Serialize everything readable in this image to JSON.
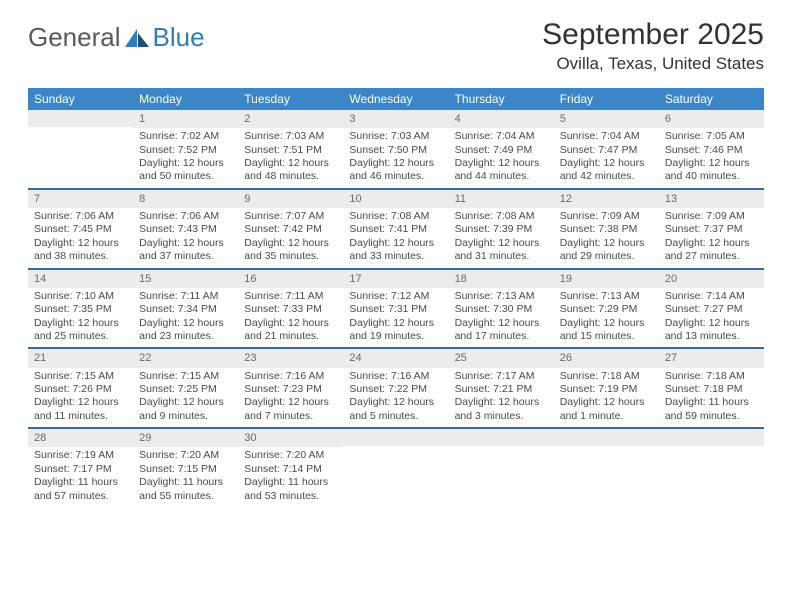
{
  "logo": {
    "general": "General",
    "blue": "Blue"
  },
  "title": "September 2025",
  "location": "Ovilla, Texas, United States",
  "header_color": "#3a86c8",
  "rule_color": "#3a6a9a",
  "daynum_bg": "#ececec",
  "day_names": [
    "Sunday",
    "Monday",
    "Tuesday",
    "Wednesday",
    "Thursday",
    "Friday",
    "Saturday"
  ],
  "weeks": [
    [
      {
        "n": "",
        "sr": "",
        "ss": "",
        "dl": ""
      },
      {
        "n": "1",
        "sr": "Sunrise: 7:02 AM",
        "ss": "Sunset: 7:52 PM",
        "dl": "Daylight: 12 hours and 50 minutes."
      },
      {
        "n": "2",
        "sr": "Sunrise: 7:03 AM",
        "ss": "Sunset: 7:51 PM",
        "dl": "Daylight: 12 hours and 48 minutes."
      },
      {
        "n": "3",
        "sr": "Sunrise: 7:03 AM",
        "ss": "Sunset: 7:50 PM",
        "dl": "Daylight: 12 hours and 46 minutes."
      },
      {
        "n": "4",
        "sr": "Sunrise: 7:04 AM",
        "ss": "Sunset: 7:49 PM",
        "dl": "Daylight: 12 hours and 44 minutes."
      },
      {
        "n": "5",
        "sr": "Sunrise: 7:04 AM",
        "ss": "Sunset: 7:47 PM",
        "dl": "Daylight: 12 hours and 42 minutes."
      },
      {
        "n": "6",
        "sr": "Sunrise: 7:05 AM",
        "ss": "Sunset: 7:46 PM",
        "dl": "Daylight: 12 hours and 40 minutes."
      }
    ],
    [
      {
        "n": "7",
        "sr": "Sunrise: 7:06 AM",
        "ss": "Sunset: 7:45 PM",
        "dl": "Daylight: 12 hours and 38 minutes."
      },
      {
        "n": "8",
        "sr": "Sunrise: 7:06 AM",
        "ss": "Sunset: 7:43 PM",
        "dl": "Daylight: 12 hours and 37 minutes."
      },
      {
        "n": "9",
        "sr": "Sunrise: 7:07 AM",
        "ss": "Sunset: 7:42 PM",
        "dl": "Daylight: 12 hours and 35 minutes."
      },
      {
        "n": "10",
        "sr": "Sunrise: 7:08 AM",
        "ss": "Sunset: 7:41 PM",
        "dl": "Daylight: 12 hours and 33 minutes."
      },
      {
        "n": "11",
        "sr": "Sunrise: 7:08 AM",
        "ss": "Sunset: 7:39 PM",
        "dl": "Daylight: 12 hours and 31 minutes."
      },
      {
        "n": "12",
        "sr": "Sunrise: 7:09 AM",
        "ss": "Sunset: 7:38 PM",
        "dl": "Daylight: 12 hours and 29 minutes."
      },
      {
        "n": "13",
        "sr": "Sunrise: 7:09 AM",
        "ss": "Sunset: 7:37 PM",
        "dl": "Daylight: 12 hours and 27 minutes."
      }
    ],
    [
      {
        "n": "14",
        "sr": "Sunrise: 7:10 AM",
        "ss": "Sunset: 7:35 PM",
        "dl": "Daylight: 12 hours and 25 minutes."
      },
      {
        "n": "15",
        "sr": "Sunrise: 7:11 AM",
        "ss": "Sunset: 7:34 PM",
        "dl": "Daylight: 12 hours and 23 minutes."
      },
      {
        "n": "16",
        "sr": "Sunrise: 7:11 AM",
        "ss": "Sunset: 7:33 PM",
        "dl": "Daylight: 12 hours and 21 minutes."
      },
      {
        "n": "17",
        "sr": "Sunrise: 7:12 AM",
        "ss": "Sunset: 7:31 PM",
        "dl": "Daylight: 12 hours and 19 minutes."
      },
      {
        "n": "18",
        "sr": "Sunrise: 7:13 AM",
        "ss": "Sunset: 7:30 PM",
        "dl": "Daylight: 12 hours and 17 minutes."
      },
      {
        "n": "19",
        "sr": "Sunrise: 7:13 AM",
        "ss": "Sunset: 7:29 PM",
        "dl": "Daylight: 12 hours and 15 minutes."
      },
      {
        "n": "20",
        "sr": "Sunrise: 7:14 AM",
        "ss": "Sunset: 7:27 PM",
        "dl": "Daylight: 12 hours and 13 minutes."
      }
    ],
    [
      {
        "n": "21",
        "sr": "Sunrise: 7:15 AM",
        "ss": "Sunset: 7:26 PM",
        "dl": "Daylight: 12 hours and 11 minutes."
      },
      {
        "n": "22",
        "sr": "Sunrise: 7:15 AM",
        "ss": "Sunset: 7:25 PM",
        "dl": "Daylight: 12 hours and 9 minutes."
      },
      {
        "n": "23",
        "sr": "Sunrise: 7:16 AM",
        "ss": "Sunset: 7:23 PM",
        "dl": "Daylight: 12 hours and 7 minutes."
      },
      {
        "n": "24",
        "sr": "Sunrise: 7:16 AM",
        "ss": "Sunset: 7:22 PM",
        "dl": "Daylight: 12 hours and 5 minutes."
      },
      {
        "n": "25",
        "sr": "Sunrise: 7:17 AM",
        "ss": "Sunset: 7:21 PM",
        "dl": "Daylight: 12 hours and 3 minutes."
      },
      {
        "n": "26",
        "sr": "Sunrise: 7:18 AM",
        "ss": "Sunset: 7:19 PM",
        "dl": "Daylight: 12 hours and 1 minute."
      },
      {
        "n": "27",
        "sr": "Sunrise: 7:18 AM",
        "ss": "Sunset: 7:18 PM",
        "dl": "Daylight: 11 hours and 59 minutes."
      }
    ],
    [
      {
        "n": "28",
        "sr": "Sunrise: 7:19 AM",
        "ss": "Sunset: 7:17 PM",
        "dl": "Daylight: 11 hours and 57 minutes."
      },
      {
        "n": "29",
        "sr": "Sunrise: 7:20 AM",
        "ss": "Sunset: 7:15 PM",
        "dl": "Daylight: 11 hours and 55 minutes."
      },
      {
        "n": "30",
        "sr": "Sunrise: 7:20 AM",
        "ss": "Sunset: 7:14 PM",
        "dl": "Daylight: 11 hours and 53 minutes."
      },
      {
        "n": "",
        "sr": "",
        "ss": "",
        "dl": ""
      },
      {
        "n": "",
        "sr": "",
        "ss": "",
        "dl": ""
      },
      {
        "n": "",
        "sr": "",
        "ss": "",
        "dl": ""
      },
      {
        "n": "",
        "sr": "",
        "ss": "",
        "dl": ""
      }
    ]
  ]
}
